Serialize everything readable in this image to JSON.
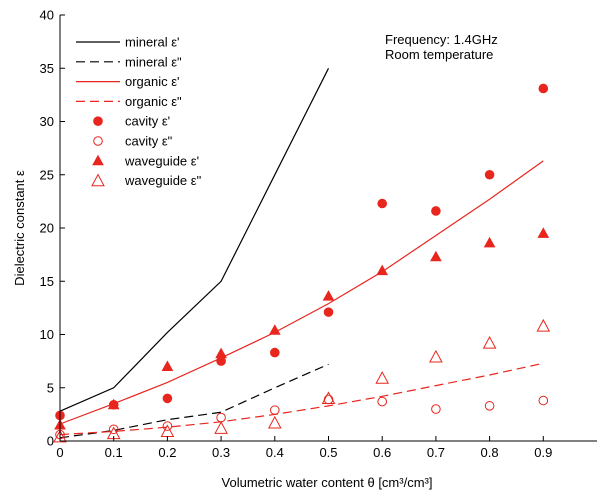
{
  "chart_data": {
    "type": "scatter",
    "xlabel": "Volumetric water content θ [cm³/cm³]",
    "ylabel": "Dielectric constant ε",
    "xlim": [
      0,
      1.0
    ],
    "ylim": [
      0,
      40
    ],
    "x_ticks": [
      0,
      0.1,
      0.2,
      0.3,
      0.4,
      0.5,
      0.6,
      0.7,
      0.8,
      0.9
    ],
    "y_ticks": [
      0,
      5,
      10,
      15,
      20,
      25,
      30,
      35,
      40
    ],
    "grid": false,
    "legend_position": "top-left",
    "annotations": [
      "Frequency: 1.4GHz",
      "Room temperature"
    ],
    "series": [
      {
        "name": "mineral ε'",
        "kind": "line",
        "style": "solid",
        "color": "#000000",
        "x": [
          0,
          0.1,
          0.2,
          0.3,
          0.4,
          0.5
        ],
        "y": [
          2.8,
          5.0,
          10.2,
          15.0,
          25.0,
          35.0
        ]
      },
      {
        "name": "mineral ε\"",
        "kind": "line",
        "style": "dashed",
        "color": "#000000",
        "x": [
          0,
          0.1,
          0.2,
          0.3,
          0.4,
          0.5
        ],
        "y": [
          0.3,
          1.0,
          2.0,
          2.7,
          5.0,
          7.2
        ]
      },
      {
        "name": "organic ε'",
        "kind": "line",
        "style": "solid",
        "color": "#e8261e",
        "x": [
          0,
          0.1,
          0.2,
          0.3,
          0.4,
          0.5,
          0.6,
          0.7,
          0.8,
          0.9
        ],
        "y": [
          1.6,
          3.5,
          5.5,
          7.8,
          10.2,
          12.9,
          15.9,
          19.3,
          22.7,
          26.3
        ]
      },
      {
        "name": "organic ε\"",
        "kind": "line",
        "style": "dashed",
        "color": "#e8261e",
        "x": [
          0,
          0.1,
          0.2,
          0.3,
          0.4,
          0.5,
          0.6,
          0.7,
          0.8,
          0.9
        ],
        "y": [
          0.6,
          0.9,
          1.3,
          1.8,
          2.5,
          3.3,
          4.2,
          5.2,
          6.2,
          7.3
        ]
      },
      {
        "name": "cavity ε'",
        "kind": "marker",
        "marker": "filled-circle",
        "color": "#e8261e",
        "x": [
          0,
          0.1,
          0.2,
          0.3,
          0.4,
          0.5,
          0.6,
          0.7,
          0.8,
          0.9
        ],
        "y": [
          2.4,
          3.4,
          4.0,
          7.5,
          8.3,
          12.1,
          22.3,
          21.6,
          25.0,
          33.1
        ]
      },
      {
        "name": "cavity ε\"",
        "kind": "marker",
        "marker": "open-circle",
        "color": "#e8261e",
        "x": [
          0,
          0.1,
          0.2,
          0.3,
          0.4,
          0.5,
          0.6,
          0.7,
          0.8,
          0.9
        ],
        "y": [
          0.6,
          1.1,
          1.4,
          2.2,
          2.9,
          3.9,
          3.7,
          3.0,
          3.3,
          3.8
        ]
      },
      {
        "name": "waveguide ε'",
        "kind": "marker",
        "marker": "filled-triangle",
        "color": "#e8261e",
        "x": [
          0,
          0.1,
          0.2,
          0.3,
          0.4,
          0.5,
          0.6,
          0.7,
          0.8,
          0.9
        ],
        "y": [
          1.5,
          3.4,
          7.0,
          8.2,
          10.4,
          13.6,
          16.0,
          17.3,
          18.6,
          19.5
        ]
      },
      {
        "name": "waveguide ε\"",
        "kind": "marker",
        "marker": "open-triangle",
        "color": "#e8261e",
        "x": [
          0,
          0.1,
          0.2,
          0.3,
          0.4,
          0.5,
          0.6,
          0.7,
          0.8,
          0.9
        ],
        "y": [
          0.4,
          0.7,
          0.9,
          1.2,
          1.7,
          4.0,
          5.9,
          7.9,
          9.2,
          10.8
        ]
      }
    ]
  }
}
